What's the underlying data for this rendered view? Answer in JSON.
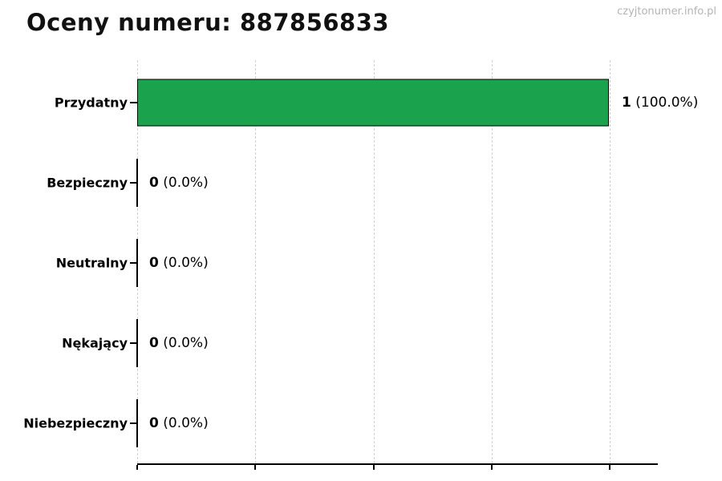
{
  "title": "Oceny numeru: 887856833",
  "watermark": "czyjtonumer.info.pl",
  "colors": {
    "bar_fill": "#1aa24c",
    "bar_border": "#000000",
    "gridline": "#cfcfcf",
    "axis": "#000000",
    "title_text": "#111111",
    "watermark_text": "#b4b4b4"
  },
  "chart_data": {
    "type": "bar",
    "orientation": "horizontal",
    "title": "Oceny numeru: 887856833",
    "categories": [
      "Przydatny",
      "Bezpieczny",
      "Neutralny",
      "Nękający",
      "Niebezpieczny"
    ],
    "values": [
      1,
      0,
      0,
      0,
      0
    ],
    "percentages": [
      100.0,
      0.0,
      0.0,
      0.0,
      0.0
    ],
    "value_labels": [
      "1",
      "0",
      "0",
      "0",
      "0"
    ],
    "pct_labels": [
      "(100.0%)",
      "(0.0%)",
      "(0.0%)",
      "(0.0%)",
      "(0.0%)"
    ],
    "xlim": [
      0,
      1.1
    ],
    "x_ticks": [
      0,
      0.25,
      0.5,
      0.75,
      1.0
    ],
    "x_tick_labels": [],
    "grid": "vertical-dashed",
    "legend": "none",
    "xlabel": "",
    "ylabel": ""
  }
}
